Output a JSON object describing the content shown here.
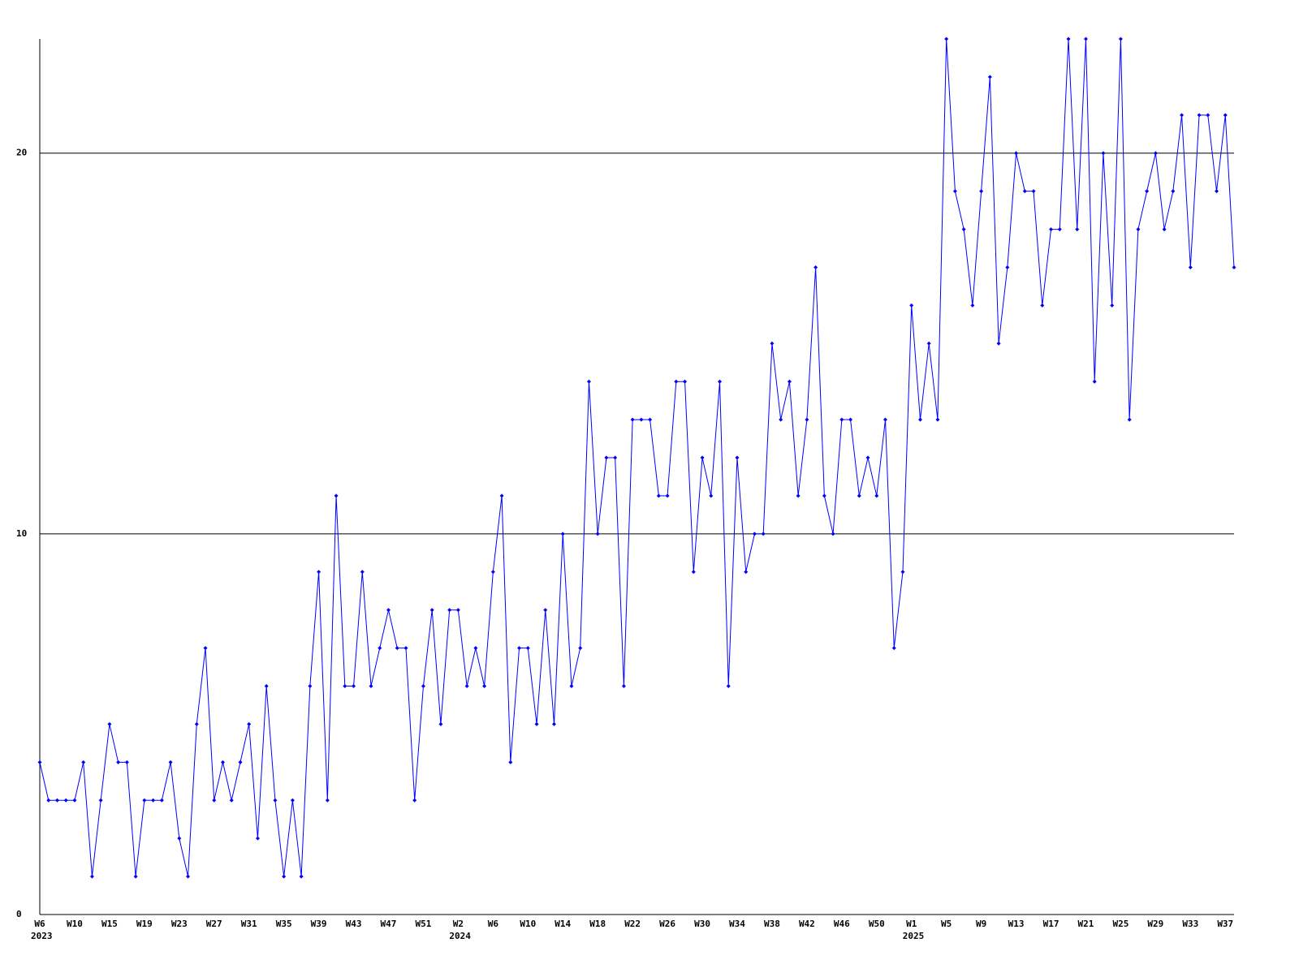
{
  "chart_data": {
    "type": "line",
    "categories": [
      "W6",
      null,
      null,
      null,
      "W10",
      null,
      null,
      null,
      "W15",
      null,
      null,
      null,
      "W19",
      null,
      null,
      null,
      "W23",
      null,
      null,
      null,
      "W27",
      null,
      null,
      null,
      "W31",
      null,
      null,
      null,
      "W35",
      null,
      null,
      null,
      "W39",
      null,
      null,
      null,
      "W43",
      null,
      null,
      null,
      "W47",
      null,
      null,
      null,
      "W51",
      null,
      null,
      null,
      "W2",
      null,
      null,
      null,
      "W6",
      null,
      null,
      null,
      "W10",
      null,
      null,
      null,
      "W14",
      null,
      null,
      null,
      "W18",
      null,
      null,
      null,
      "W22",
      null,
      null,
      null,
      "W26",
      null,
      null,
      null,
      "W30",
      null,
      null,
      null,
      "W34",
      null,
      null,
      null,
      "W38",
      null,
      null,
      null,
      "W42",
      null,
      null,
      null,
      "W46",
      null,
      null,
      null,
      "W50",
      null,
      null,
      null,
      "W1",
      null,
      null,
      null,
      "W5",
      null,
      null,
      null,
      "W9",
      null,
      null,
      null,
      "W13",
      null,
      null,
      null,
      "W17",
      null,
      null,
      null,
      "W21",
      null,
      null,
      null,
      "W25",
      null,
      null,
      null,
      "W29",
      null,
      null,
      null,
      "W33",
      null,
      null,
      null,
      "W37",
      null
    ],
    "years": [
      "2023",
      null,
      null,
      null,
      null,
      null,
      null,
      null,
      null,
      null,
      null,
      null,
      null,
      null,
      null,
      null,
      null,
      null,
      null,
      null,
      null,
      null,
      null,
      null,
      null,
      null,
      null,
      null,
      null,
      null,
      null,
      null,
      null,
      null,
      null,
      null,
      null,
      null,
      null,
      null,
      null,
      null,
      null,
      null,
      null,
      null,
      null,
      null,
      "2024",
      null,
      null,
      null,
      null,
      null,
      null,
      null,
      null,
      null,
      null,
      null,
      null,
      null,
      null,
      null,
      null,
      null,
      null,
      null,
      null,
      null,
      null,
      null,
      null,
      null,
      null,
      null,
      null,
      null,
      null,
      null,
      null,
      null,
      null,
      null,
      null,
      null,
      null,
      null,
      null,
      null,
      null,
      null,
      null,
      null,
      null,
      null,
      null,
      null,
      null,
      null,
      "2025",
      null,
      null,
      null,
      null,
      null,
      null,
      null,
      null,
      null,
      null,
      null,
      null,
      null,
      null,
      null,
      null,
      null,
      null,
      null,
      null,
      null,
      null,
      null,
      null,
      null,
      null,
      null,
      null,
      null,
      null,
      null,
      null,
      null,
      null,
      null,
      null
    ],
    "series": [
      {
        "color": "#0000ff",
        "values": [
          4,
          3,
          3,
          3,
          3,
          4,
          1,
          3,
          5,
          4,
          4,
          1,
          3,
          3,
          3,
          4,
          2,
          1,
          5,
          7,
          3,
          4,
          3,
          4,
          5,
          2,
          6,
          3,
          1,
          3,
          1,
          6,
          9,
          3,
          11,
          6,
          6,
          9,
          6,
          7,
          8,
          7,
          7,
          3,
          6,
          8,
          5,
          8,
          8,
          6,
          7,
          6,
          9,
          11,
          4,
          7,
          7,
          5,
          8,
          5,
          10,
          6,
          7,
          14,
          10,
          12,
          12,
          6,
          13,
          13,
          13,
          11,
          11,
          14,
          14,
          9,
          12,
          11,
          14,
          6,
          12,
          9,
          10,
          10,
          15,
          13,
          14,
          11,
          13,
          17,
          11,
          10,
          13,
          13,
          11,
          12,
          11,
          13,
          7,
          9,
          16,
          13,
          15,
          13,
          23,
          19,
          18,
          16,
          19,
          22,
          15,
          17,
          20,
          19,
          19,
          16,
          18,
          18,
          23,
          18,
          23,
          14,
          20,
          16,
          23,
          13,
          18,
          19,
          20,
          18,
          19,
          21,
          17,
          21,
          21,
          19,
          21,
          17
        ]
      }
    ],
    "ylim": [
      0,
      23
    ],
    "yticks": [
      0,
      10,
      20
    ],
    "grid": true
  }
}
